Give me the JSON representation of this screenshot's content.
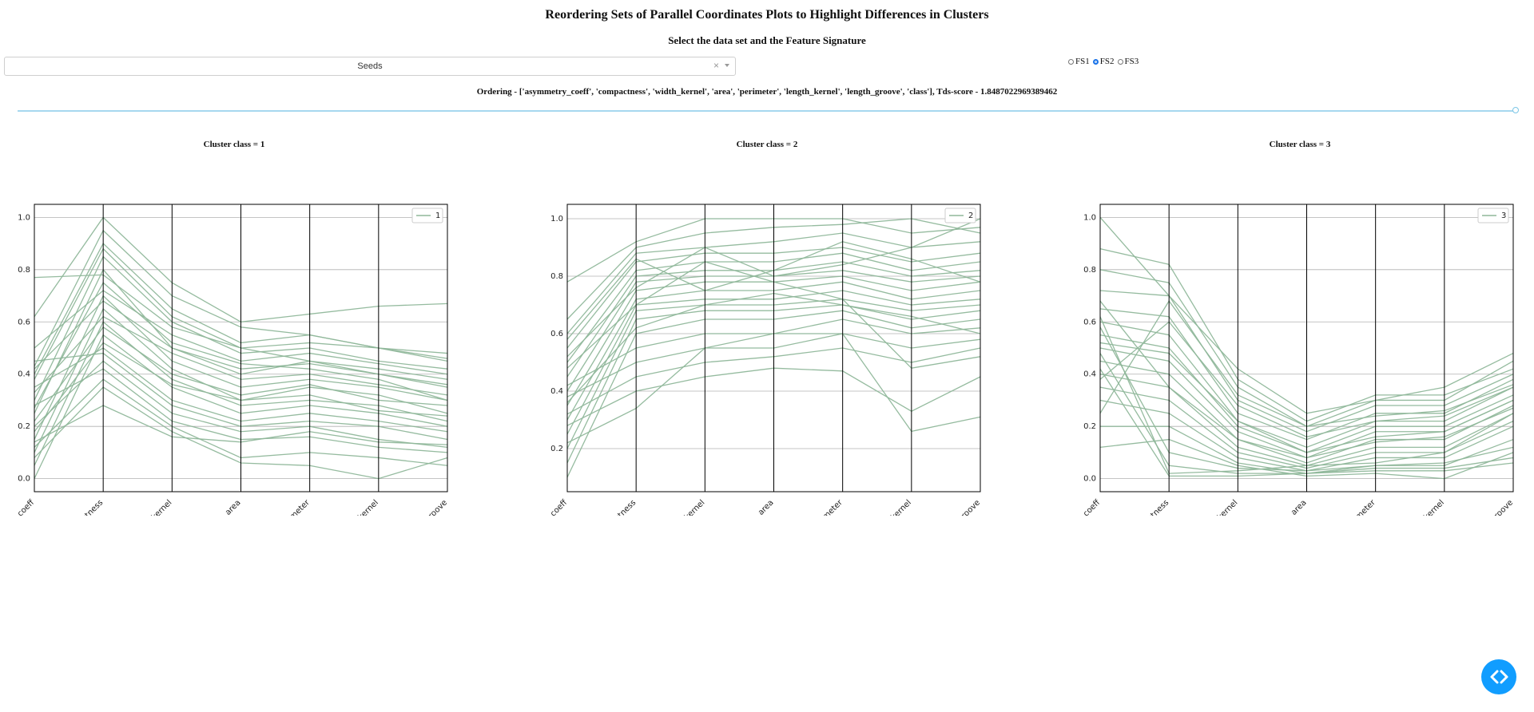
{
  "header": {
    "title": "Reordering Sets of Parallel Coordinates Plots to Highlight Differences in Clusters",
    "subtitle": "Select the data set and the Feature Signature"
  },
  "controls": {
    "dataset_value": "Seeds",
    "clear_glyph": "×",
    "feature_signature_options": [
      "FS1",
      "FS2",
      "FS3"
    ],
    "feature_signature_selected": "FS2",
    "ordering_text": "Ordering - ['asymmetry_coeff', 'compactness', 'width_kernel', 'area', 'perimeter', 'length_kernel', 'length_groove', 'class'], Tds-score - 1.8487022969389462",
    "slider_value_fraction": 1.0
  },
  "colors": {
    "line": "#8fb79a",
    "grid": "#b0b0b0",
    "axis": "#000000",
    "slider": "#a6d8ef",
    "fab": "#119dff"
  },
  "fab_icon": "code-brackets-icon",
  "chart_data": [
    {
      "type": "line",
      "title": "Cluster class = 1",
      "axes": [
        "asymmetry_coeff",
        "compactness",
        "width_kernel",
        "area",
        "perimeter",
        "length_kernel",
        "length_groove"
      ],
      "yticks": [
        "0.0",
        "0.2",
        "0.4",
        "0.6",
        "0.8",
        "1.0"
      ],
      "ylim": [
        -0.05,
        1.05
      ],
      "legend": "1",
      "legend_position": "top-right",
      "series": [
        {
          "values": [
            0.77,
            0.78,
            0.58,
            0.5,
            0.45,
            0.4,
            0.35
          ]
        },
        {
          "values": [
            0.62,
            1.0,
            0.75,
            0.6,
            0.63,
            0.66,
            0.67
          ]
        },
        {
          "values": [
            0.4,
            0.9,
            0.65,
            0.52,
            0.55,
            0.5,
            0.48
          ]
        },
        {
          "values": [
            0.3,
            0.85,
            0.6,
            0.48,
            0.5,
            0.45,
            0.42
          ]
        },
        {
          "values": [
            0.25,
            0.8,
            0.5,
            0.4,
            0.45,
            0.42,
            0.38
          ]
        },
        {
          "values": [
            0.15,
            0.7,
            0.45,
            0.35,
            0.38,
            0.35,
            0.3
          ]
        },
        {
          "values": [
            0.1,
            0.65,
            0.42,
            0.3,
            0.35,
            0.32,
            0.25
          ]
        },
        {
          "values": [
            0.05,
            0.6,
            0.38,
            0.28,
            0.3,
            0.28,
            0.22
          ]
        },
        {
          "values": [
            0.0,
            0.55,
            0.35,
            0.25,
            0.28,
            0.25,
            0.2
          ]
        },
        {
          "values": [
            0.35,
            0.5,
            0.3,
            0.22,
            0.25,
            0.22,
            0.18
          ]
        },
        {
          "values": [
            0.45,
            0.48,
            0.28,
            0.2,
            0.22,
            0.2,
            0.15
          ]
        },
        {
          "values": [
            0.2,
            0.45,
            0.25,
            0.18,
            0.2,
            0.15,
            0.12
          ]
        },
        {
          "values": [
            0.28,
            0.42,
            0.22,
            0.15,
            0.16,
            0.12,
            0.1
          ]
        },
        {
          "values": [
            0.12,
            0.38,
            0.2,
            0.08,
            0.1,
            0.08,
            0.05
          ]
        },
        {
          "values": [
            0.08,
            0.35,
            0.18,
            0.06,
            0.05,
            0.0,
            0.08
          ]
        },
        {
          "values": [
            0.5,
            0.72,
            0.55,
            0.45,
            0.48,
            0.44,
            0.4
          ]
        },
        {
          "values": [
            0.42,
            0.68,
            0.5,
            0.42,
            0.44,
            0.4,
            0.36
          ]
        },
        {
          "values": [
            0.33,
            0.62,
            0.48,
            0.38,
            0.4,
            0.36,
            0.32
          ]
        },
        {
          "values": [
            0.22,
            0.58,
            0.4,
            0.32,
            0.36,
            0.3,
            0.28
          ]
        },
        {
          "values": [
            0.18,
            0.52,
            0.36,
            0.3,
            0.32,
            0.26,
            0.24
          ]
        },
        {
          "values": [
            0.38,
            0.88,
            0.62,
            0.5,
            0.52,
            0.5,
            0.45
          ]
        },
        {
          "values": [
            0.27,
            0.75,
            0.52,
            0.44,
            0.42,
            0.38,
            0.3
          ]
        },
        {
          "values": [
            0.43,
            0.95,
            0.7,
            0.58,
            0.55,
            0.5,
            0.46
          ]
        },
        {
          "values": [
            0.14,
            0.28,
            0.16,
            0.14,
            0.18,
            0.14,
            0.13
          ]
        }
      ]
    },
    {
      "type": "line",
      "title": "Cluster class = 2",
      "axes": [
        "asymmetry_coeff",
        "compactness",
        "width_kernel",
        "area",
        "perimeter",
        "length_kernel",
        "length_groove"
      ],
      "yticks": [
        "0.2",
        "0.4",
        "0.6",
        "0.8",
        "1.0"
      ],
      "ylim": [
        0.05,
        1.05
      ],
      "legend": "2",
      "legend_position": "top-right",
      "series": [
        {
          "values": [
            0.78,
            0.92,
            1.0,
            1.0,
            1.0,
            0.95,
            0.97
          ]
        },
        {
          "values": [
            0.65,
            0.9,
            0.95,
            0.97,
            0.98,
            1.0,
            0.95
          ]
        },
        {
          "values": [
            0.6,
            0.88,
            0.9,
            0.92,
            0.95,
            0.9,
            0.92
          ]
        },
        {
          "values": [
            0.55,
            0.85,
            0.88,
            0.88,
            0.9,
            0.85,
            0.88
          ]
        },
        {
          "values": [
            0.5,
            0.82,
            0.85,
            0.85,
            0.88,
            0.82,
            0.85
          ]
        },
        {
          "values": [
            0.45,
            0.8,
            0.82,
            0.82,
            0.85,
            0.8,
            0.82
          ]
        },
        {
          "values": [
            0.4,
            0.78,
            0.8,
            0.8,
            0.82,
            0.78,
            0.8
          ]
        },
        {
          "values": [
            0.35,
            0.75,
            0.78,
            0.78,
            0.8,
            0.75,
            0.78
          ]
        },
        {
          "values": [
            0.3,
            0.72,
            0.75,
            0.75,
            0.78,
            0.72,
            0.75
          ]
        },
        {
          "values": [
            0.25,
            0.7,
            0.72,
            0.72,
            0.75,
            0.7,
            0.72
          ]
        },
        {
          "values": [
            0.2,
            0.68,
            0.7,
            0.7,
            0.72,
            0.68,
            0.7
          ]
        },
        {
          "values": [
            0.15,
            0.65,
            0.68,
            0.68,
            0.7,
            0.65,
            0.68
          ]
        },
        {
          "values": [
            0.1,
            0.6,
            0.65,
            0.65,
            0.68,
            0.62,
            0.65
          ]
        },
        {
          "values": [
            0.42,
            0.55,
            0.6,
            0.6,
            0.65,
            0.6,
            0.62
          ]
        },
        {
          "values": [
            0.38,
            0.5,
            0.55,
            0.55,
            0.6,
            0.55,
            0.58
          ]
        },
        {
          "values": [
            0.32,
            0.45,
            0.5,
            0.52,
            0.55,
            0.5,
            0.55
          ]
        },
        {
          "values": [
            0.28,
            0.4,
            0.45,
            0.48,
            0.47,
            0.33,
            0.45
          ]
        },
        {
          "values": [
            0.22,
            0.34,
            0.55,
            0.6,
            0.6,
            0.26,
            0.31
          ]
        },
        {
          "values": [
            0.48,
            0.7,
            0.85,
            0.78,
            0.72,
            0.48,
            0.52
          ]
        },
        {
          "values": [
            0.52,
            0.76,
            0.9,
            0.8,
            0.84,
            0.9,
            1.0
          ]
        },
        {
          "values": [
            0.58,
            0.86,
            0.75,
            0.82,
            0.92,
            0.86,
            0.78
          ]
        },
        {
          "values": [
            0.36,
            0.62,
            0.7,
            0.74,
            0.7,
            0.66,
            0.6
          ]
        }
      ]
    },
    {
      "type": "line",
      "title": "Cluster class = 3",
      "axes": [
        "asymmetry_coeff",
        "compactness",
        "width_kernel",
        "area",
        "perimeter",
        "length_kernel",
        "length_groove"
      ],
      "yticks": [
        "0.0",
        "0.2",
        "0.4",
        "0.6",
        "0.8",
        "1.0"
      ],
      "ylim": [
        -0.05,
        1.05
      ],
      "legend": "3",
      "legend_position": "top-right",
      "series": [
        {
          "values": [
            1.0,
            0.7,
            0.42,
            0.25,
            0.3,
            0.35,
            0.48
          ]
        },
        {
          "values": [
            0.88,
            0.82,
            0.38,
            0.22,
            0.32,
            0.32,
            0.42
          ]
        },
        {
          "values": [
            0.8,
            0.75,
            0.35,
            0.2,
            0.3,
            0.3,
            0.45
          ]
        },
        {
          "values": [
            0.72,
            0.7,
            0.3,
            0.18,
            0.28,
            0.28,
            0.4
          ]
        },
        {
          "values": [
            0.65,
            0.62,
            0.25,
            0.15,
            0.25,
            0.25,
            0.38
          ]
        },
        {
          "values": [
            0.6,
            0.55,
            0.22,
            0.12,
            0.22,
            0.22,
            0.35
          ]
        },
        {
          "values": [
            0.55,
            0.5,
            0.2,
            0.1,
            0.2,
            0.2,
            0.32
          ]
        },
        {
          "values": [
            0.5,
            0.45,
            0.18,
            0.08,
            0.18,
            0.18,
            0.3
          ]
        },
        {
          "values": [
            0.45,
            0.4,
            0.15,
            0.06,
            0.15,
            0.15,
            0.28
          ]
        },
        {
          "values": [
            0.4,
            0.35,
            0.12,
            0.05,
            0.12,
            0.12,
            0.25
          ]
        },
        {
          "values": [
            0.35,
            0.3,
            0.1,
            0.04,
            0.1,
            0.1,
            0.22
          ]
        },
        {
          "values": [
            0.3,
            0.25,
            0.08,
            0.03,
            0.08,
            0.08,
            0.2
          ]
        },
        {
          "values": [
            0.2,
            0.2,
            0.06,
            0.02,
            0.05,
            0.05,
            0.15
          ]
        },
        {
          "values": [
            0.12,
            0.15,
            0.05,
            0.01,
            0.02,
            0.0,
            0.1
          ]
        },
        {
          "values": [
            0.58,
            0.1,
            0.04,
            0.03,
            0.05,
            0.06,
            0.12
          ]
        },
        {
          "values": [
            0.48,
            0.05,
            0.02,
            0.02,
            0.04,
            0.04,
            0.08
          ]
        },
        {
          "values": [
            0.42,
            0.01,
            0.01,
            0.02,
            0.03,
            0.03,
            0.06
          ]
        },
        {
          "values": [
            0.62,
            0.02,
            0.03,
            0.05,
            0.06,
            0.1,
            0.25
          ]
        },
        {
          "values": [
            0.38,
            0.6,
            0.28,
            0.16,
            0.22,
            0.24,
            0.35
          ]
        },
        {
          "values": [
            0.52,
            0.48,
            0.22,
            0.1,
            0.16,
            0.18,
            0.3
          ]
        },
        {
          "values": [
            0.68,
            0.35,
            0.15,
            0.08,
            0.14,
            0.16,
            0.27
          ]
        },
        {
          "values": [
            0.25,
            0.68,
            0.32,
            0.2,
            0.24,
            0.26,
            0.36
          ]
        }
      ]
    }
  ]
}
